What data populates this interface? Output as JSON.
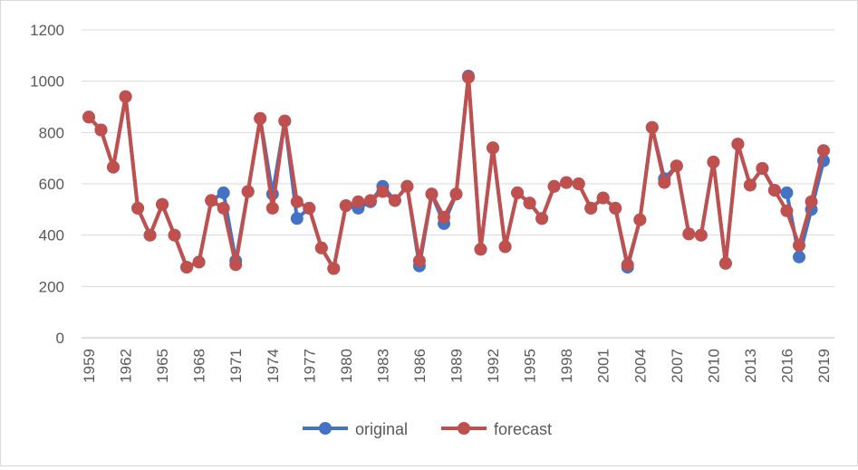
{
  "chart_data": {
    "type": "line",
    "title": "",
    "xlabel": "",
    "ylabel": "",
    "ylim": [
      0,
      1200
    ],
    "yticks": [
      0,
      200,
      400,
      600,
      800,
      1000,
      1200
    ],
    "grid": "horizontal",
    "legend": "bottom-center",
    "x": [
      1959,
      1960,
      1961,
      1962,
      1963,
      1964,
      1965,
      1966,
      1967,
      1968,
      1969,
      1970,
      1971,
      1972,
      1973,
      1974,
      1975,
      1976,
      1977,
      1978,
      1979,
      1980,
      1981,
      1982,
      1983,
      1984,
      1985,
      1986,
      1987,
      1988,
      1989,
      1990,
      1991,
      1992,
      1993,
      1994,
      1995,
      1996,
      1997,
      1998,
      1999,
      2000,
      2001,
      2002,
      2003,
      2004,
      2005,
      2006,
      2007,
      2008,
      2009,
      2010,
      2011,
      2012,
      2013,
      2014,
      2015,
      2016,
      2017,
      2018,
      2019
    ],
    "xtick_labels": [
      "1959",
      "1962",
      "1965",
      "1968",
      "1971",
      "1974",
      "1977",
      "1980",
      "1983",
      "1986",
      "1989",
      "1992",
      "1995",
      "1998",
      "2001",
      "2004",
      "2007",
      "2010",
      "2013",
      "2016",
      "2019"
    ],
    "series": [
      {
        "name": "original",
        "color": "#4472c4",
        "values": [
          860,
          810,
          665,
          940,
          505,
          400,
          520,
          400,
          275,
          295,
          535,
          565,
          300,
          570,
          855,
          560,
          845,
          465,
          505,
          350,
          270,
          515,
          505,
          530,
          590,
          535,
          590,
          280,
          560,
          445,
          560,
          1020,
          345,
          740,
          355,
          565,
          525,
          465,
          590,
          605,
          600,
          505,
          545,
          505,
          275,
          460,
          820,
          620,
          670,
          405,
          400,
          685,
          290,
          755,
          595,
          660,
          575,
          565,
          315,
          500,
          690
        ]
      },
      {
        "name": "forecast",
        "color": "#c0504d",
        "values": [
          860,
          810,
          665,
          940,
          505,
          400,
          520,
          400,
          275,
          295,
          535,
          505,
          285,
          570,
          855,
          505,
          845,
          530,
          505,
          350,
          270,
          515,
          530,
          535,
          570,
          535,
          590,
          300,
          560,
          470,
          560,
          1015,
          345,
          740,
          355,
          565,
          525,
          465,
          590,
          605,
          600,
          505,
          545,
          505,
          285,
          460,
          820,
          605,
          670,
          405,
          400,
          685,
          290,
          755,
          595,
          660,
          575,
          495,
          360,
          530,
          730
        ]
      }
    ]
  }
}
